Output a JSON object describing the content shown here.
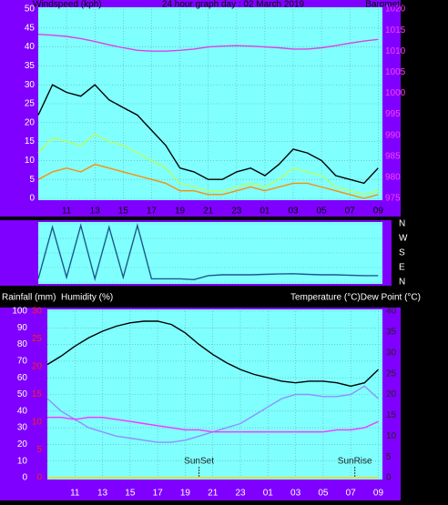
{
  "chart_data": [
    {
      "type": "line",
      "title": "24 hour graph day : 02 March 2019",
      "y_label": "Windspeed (kph)",
      "y2_label": "Barometer (hpa)",
      "grid": true,
      "x": [
        0,
        1,
        2,
        3,
        4,
        5,
        6,
        7,
        8,
        9,
        10,
        11,
        12,
        13,
        14,
        15,
        16,
        17,
        18,
        19,
        20,
        21,
        22,
        23,
        24
      ],
      "xlim": [
        0,
        24.3
      ],
      "xticks": [
        {
          "value": 2,
          "label": "11"
        },
        {
          "value": 4,
          "label": "13"
        },
        {
          "value": 6,
          "label": "15"
        },
        {
          "value": 8,
          "label": "17"
        },
        {
          "value": 10,
          "label": "19"
        },
        {
          "value": 12,
          "label": "21"
        },
        {
          "value": 14,
          "label": "23"
        },
        {
          "value": 16,
          "label": "01"
        },
        {
          "value": 18,
          "label": "03"
        },
        {
          "value": 20,
          "label": "05"
        },
        {
          "value": 22,
          "label": "07"
        },
        {
          "value": 24,
          "label": "09"
        }
      ],
      "ylim": [
        0,
        50
      ],
      "yticks": [
        0,
        5,
        10,
        15,
        20,
        25,
        30,
        35,
        40,
        45,
        50
      ],
      "y2lim": [
        975,
        1020
      ],
      "y2ticks": [
        975,
        980,
        985,
        990,
        995,
        1000,
        1005,
        1010,
        1015,
        1020
      ],
      "series": [
        {
          "color": "#000000",
          "values": [
            22,
            30,
            28,
            27,
            30,
            26,
            24,
            22,
            18,
            14,
            8,
            7,
            5,
            5,
            7,
            8,
            6,
            9,
            13,
            12,
            10,
            6,
            5,
            4,
            8
          ]
        },
        {
          "color": "#b8ff60",
          "values": [
            12,
            16,
            15,
            14,
            17,
            15,
            14,
            12,
            10,
            8,
            4,
            3,
            2,
            2,
            3,
            4,
            3,
            5,
            8,
            7,
            6,
            3,
            2,
            1,
            2
          ]
        },
        {
          "color": "#ff8c00",
          "values": [
            5,
            7,
            8,
            7,
            9,
            8,
            7,
            6,
            5,
            4,
            2,
            2,
            1,
            1,
            2,
            3,
            2,
            3,
            4,
            4,
            3,
            2,
            1,
            0,
            1
          ]
        },
        {
          "color": "#e040e0",
          "axis": "y2",
          "values": [
            1014,
            1013.8,
            1013.5,
            1013,
            1012.3,
            1011.5,
            1010.8,
            1010.2,
            1010,
            1010,
            1010.2,
            1010.5,
            1011,
            1011.2,
            1011.3,
            1011.2,
            1011,
            1010.8,
            1010.5,
            1010.5,
            1010.8,
            1011.3,
            1011.9,
            1012.4,
            1012.8
          ]
        }
      ]
    },
    {
      "type": "line",
      "grid": true,
      "x": [
        0,
        1,
        2,
        3,
        4,
        5,
        6,
        7,
        8,
        9,
        10,
        11,
        12,
        13,
        14,
        15,
        16,
        17,
        18,
        19,
        20,
        21,
        22,
        23,
        24
      ],
      "xlim": [
        0,
        24.3
      ],
      "ylim": [
        0,
        360
      ],
      "yticks": [
        {
          "value": 360,
          "label": "N"
        },
        {
          "value": 270,
          "label": "W"
        },
        {
          "value": 180,
          "label": "S"
        },
        {
          "value": 90,
          "label": "E"
        },
        {
          "value": 0,
          "label": "N"
        }
      ],
      "series": [
        {
          "color": "#1c5a8a",
          "values": [
            20,
            340,
            30,
            350,
            20,
            340,
            30,
            350,
            20,
            20,
            20,
            15,
            40,
            45,
            45,
            45,
            48,
            50,
            52,
            48,
            45,
            45,
            42,
            40,
            40
          ]
        }
      ]
    },
    {
      "type": "line",
      "rain_label": "Rainfall (mm)",
      "y_label": "Humidity (%)",
      "y2_label": "Temperature (°C)Dew Point (°C)",
      "grid": true,
      "x": [
        0,
        1,
        2,
        3,
        4,
        5,
        6,
        7,
        8,
        9,
        10,
        11,
        12,
        13,
        14,
        15,
        16,
        17,
        18,
        19,
        20,
        21,
        22,
        23,
        24
      ],
      "xlim": [
        0,
        24.3
      ],
      "xticks": [
        {
          "value": 2,
          "label": "11"
        },
        {
          "value": 4,
          "label": "13"
        },
        {
          "value": 6,
          "label": "15"
        },
        {
          "value": 8,
          "label": "17"
        },
        {
          "value": 10,
          "label": "19"
        },
        {
          "value": 12,
          "label": "21"
        },
        {
          "value": 14,
          "label": "23"
        },
        {
          "value": 16,
          "label": "01"
        },
        {
          "value": 18,
          "label": "03"
        },
        {
          "value": 20,
          "label": "05"
        },
        {
          "value": 22,
          "label": "07"
        },
        {
          "value": 24,
          "label": "09"
        }
      ],
      "ylim": [
        0,
        100
      ],
      "yticks": [
        0,
        10,
        20,
        30,
        40,
        50,
        60,
        70,
        80,
        90,
        100
      ],
      "y2lim": [
        0,
        40
      ],
      "y2ticks": [
        0,
        5,
        10,
        15,
        20,
        25,
        30,
        35,
        40
      ],
      "y3lim": [
        0,
        30
      ],
      "y3ticks": [
        0,
        5,
        10,
        15,
        20,
        25,
        30
      ],
      "annotations": [
        {
          "text": "SunSet",
          "x": 11
        },
        {
          "text": "SunRise",
          "x": 22.3
        }
      ],
      "series": [
        {
          "color": "#000000",
          "values": [
            68,
            73,
            79,
            84,
            88,
            91,
            93,
            94,
            94,
            92,
            87,
            80,
            74,
            69,
            65,
            62,
            60,
            58,
            57,
            58,
            58,
            57,
            55,
            57,
            65
          ]
        },
        {
          "color": "#9090ff",
          "axis": "y2",
          "values": [
            19,
            16,
            14,
            12,
            11,
            10,
            9.5,
            9,
            8.5,
            8.5,
            9,
            10,
            11,
            12,
            13,
            15,
            17,
            19,
            20,
            20,
            19.5,
            19.5,
            20,
            22,
            19
          ]
        },
        {
          "color": "#ff30ff",
          "axis": "y2",
          "values": [
            14.5,
            14.5,
            14,
            14.5,
            14.5,
            14,
            13.5,
            13,
            12.5,
            12,
            11.5,
            11.5,
            11,
            11,
            11,
            11,
            11,
            11,
            11,
            11,
            11,
            11.5,
            11.5,
            12,
            13.5
          ]
        },
        {
          "color": "#ffd000",
          "axis": "y3",
          "values": [
            0,
            0,
            0,
            0,
            0,
            0,
            0,
            0,
            0,
            0,
            0,
            0,
            0,
            0,
            0,
            0,
            0,
            0,
            0,
            0,
            0,
            0,
            0,
            0,
            0
          ]
        }
      ]
    }
  ]
}
